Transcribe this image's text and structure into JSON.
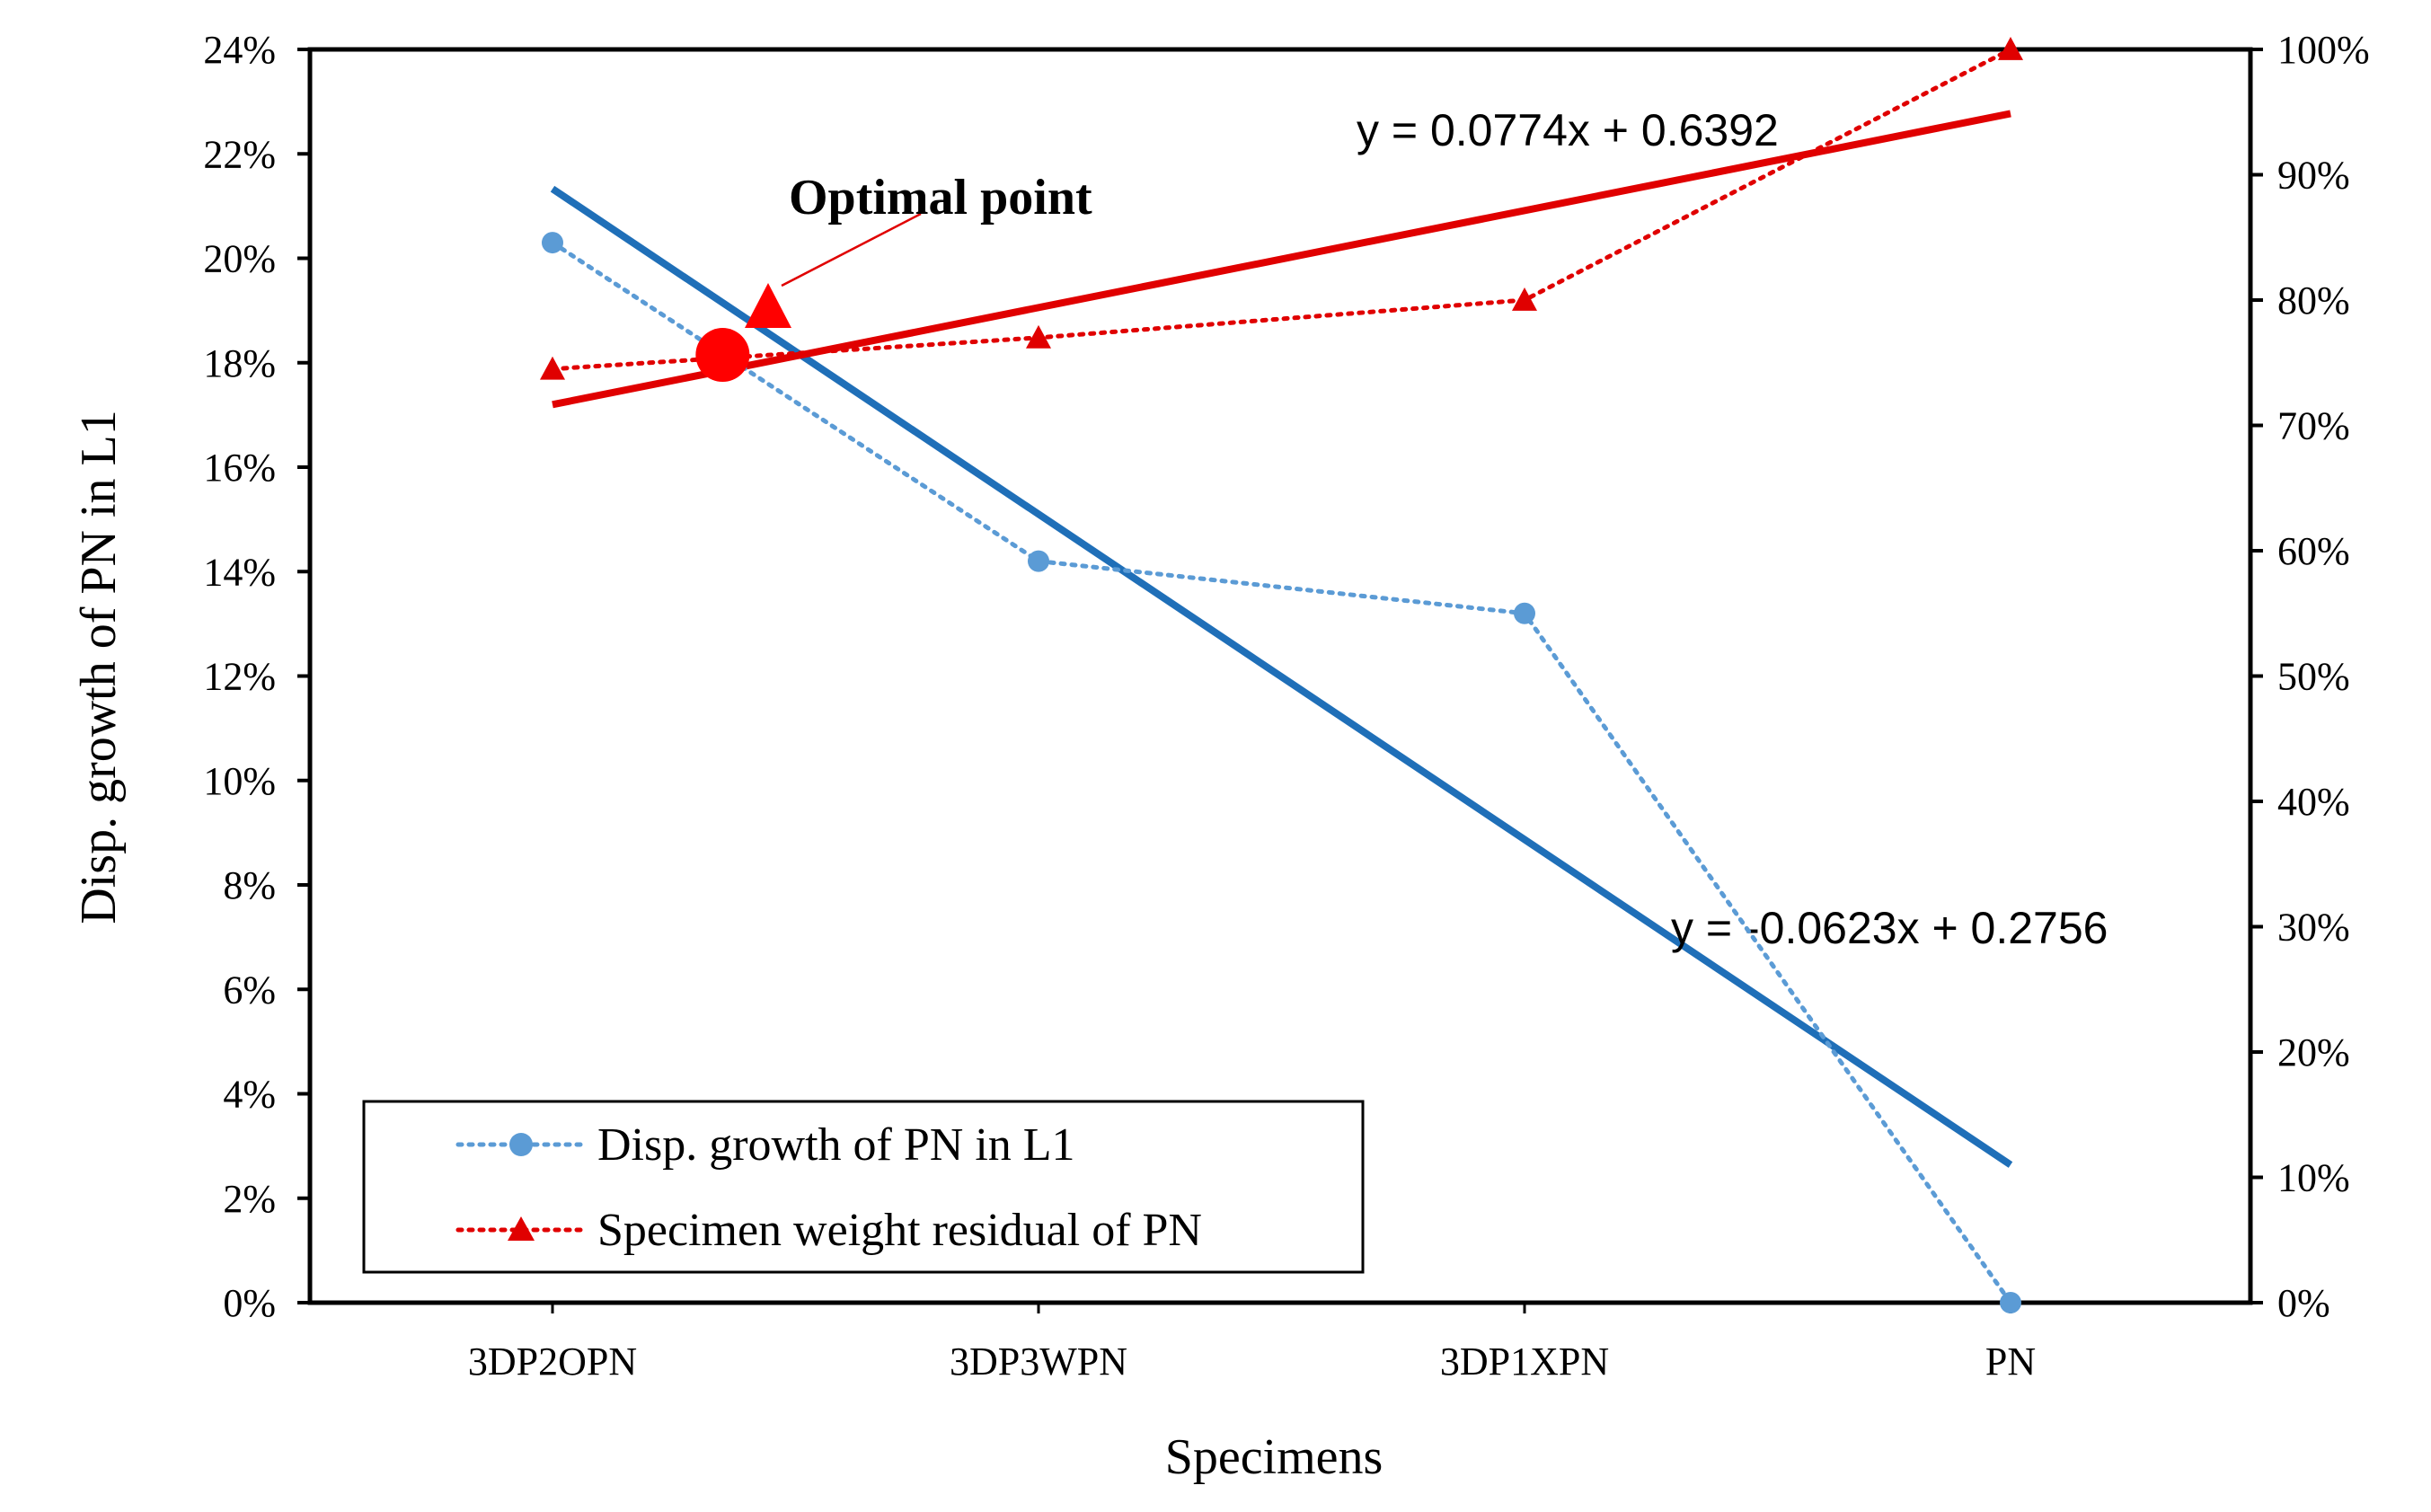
{
  "chart_data": {
    "type": "line",
    "xlabel": "Specimens",
    "ylabel": "Disp. growth of PN in L1",
    "categories": [
      "3DP2OPN",
      "3DP3WPN",
      "3DP1XPN",
      "PN"
    ],
    "ylim": [
      0,
      24
    ],
    "y2lim": [
      0,
      100
    ],
    "yticks": [
      "0%",
      "2%",
      "4%",
      "6%",
      "8%",
      "10%",
      "12%",
      "14%",
      "16%",
      "18%",
      "20%",
      "22%",
      "24%"
    ],
    "y2ticks": [
      "0%",
      "10%",
      "20%",
      "30%",
      "40%",
      "50%",
      "60%",
      "70%",
      "80%",
      "90%",
      "100%"
    ],
    "series": [
      {
        "name": "Disp. growth of PN in L1",
        "axis": "left",
        "unit": "%",
        "values": [
          20.3,
          14.2,
          13.2,
          0
        ],
        "color": "#5b9bd5",
        "marker": "circle",
        "style": "dotted"
      },
      {
        "name": "Specimen weight residual of PN",
        "axis": "right",
        "unit": "%",
        "values": [
          74.5,
          77,
          80,
          100
        ],
        "color": "#e00000",
        "marker": "triangle",
        "style": "dotted"
      }
    ],
    "trendlines": [
      {
        "series": "Disp. growth of PN in L1",
        "axis": "left",
        "slope": -0.0623,
        "intercept": 0.2756,
        "color": "#1f6fb8",
        "equation": "y = -0.0623x + 0.2756"
      },
      {
        "series": "Specimen weight residual of PN",
        "axis": "right",
        "slope": 0.0774,
        "intercept": 0.6392,
        "color": "#e00000",
        "equation": "y = 0.0774x + 0.6392"
      }
    ],
    "annotations": [
      {
        "text": "Optimal point",
        "x": 1.35,
        "value_left": 18.15
      }
    ],
    "legend": "bottom-left"
  }
}
